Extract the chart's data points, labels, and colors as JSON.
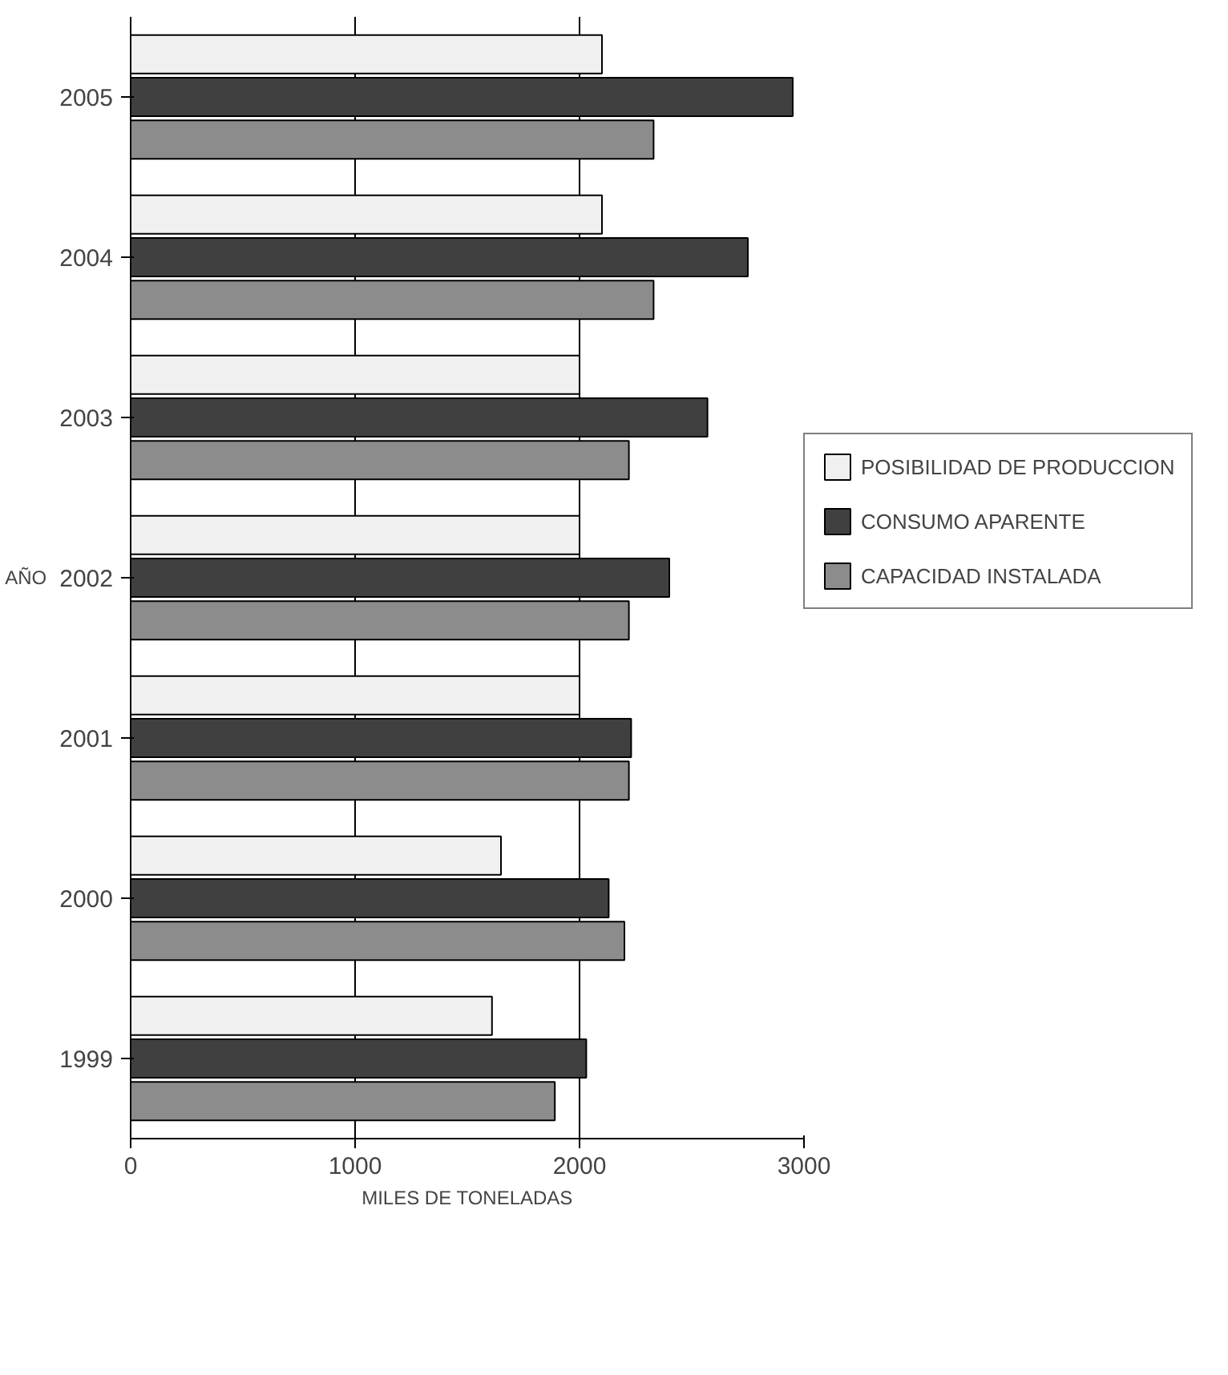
{
  "chart_data": {
    "type": "bar",
    "orientation": "horizontal",
    "xlabel": "MILES DE TONELADAS",
    "ylabel": "AÑO",
    "categories": [
      "2005",
      "2004",
      "2003",
      "2002",
      "2001",
      "2000",
      "1999"
    ],
    "series": [
      {
        "name": "POSIBILIDAD DE PRODUCCION",
        "color": "#f0f0f0",
        "values": [
          2100,
          2100,
          2000,
          2000,
          2000,
          1650,
          1610
        ]
      },
      {
        "name": "CONSUMO APARENTE",
        "color": "#404040",
        "values": [
          2950,
          2750,
          2570,
          2400,
          2230,
          2130,
          2030
        ]
      },
      {
        "name": "CAPACIDAD INSTALADA",
        "color": "#8c8c8c",
        "values": [
          2330,
          2330,
          2220,
          2220,
          2220,
          2200,
          1890
        ]
      }
    ],
    "xlim": [
      0,
      3000
    ],
    "xticks": [
      0,
      1000,
      2000,
      3000
    ],
    "grid": "x",
    "legend": "right"
  }
}
